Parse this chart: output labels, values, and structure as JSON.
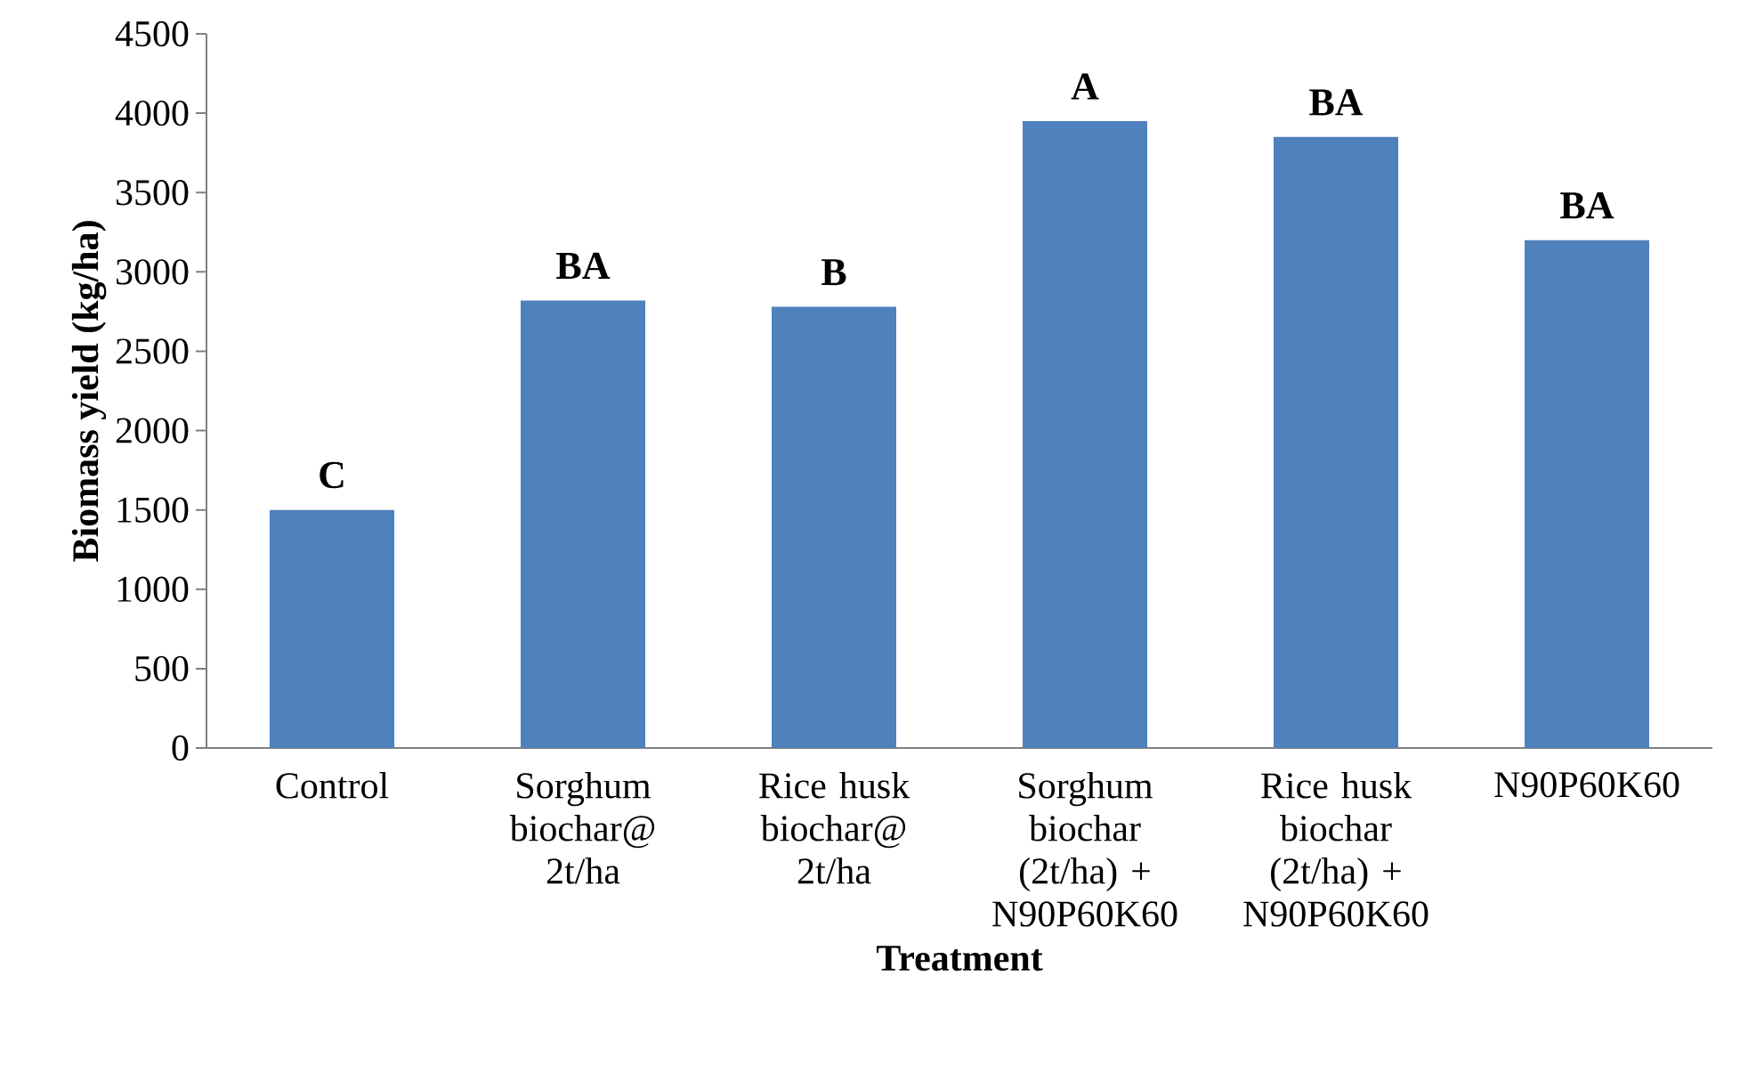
{
  "chart_data": {
    "type": "bar",
    "categories": [
      "Control",
      "Sorghum biochar@ 2t/ha",
      "Rice husk biochar@ 2t/ha",
      "Sorghum biochar (2t/ha) + N90P60K60",
      "Rice husk biochar (2t/ha) + N90P60K60",
      "N90P60K60"
    ],
    "values": [
      1500,
      2820,
      2780,
      3950,
      3850,
      3200
    ],
    "color": "#4f81bd",
    "xlabel": "Treatment",
    "ylabel": "Biomass yield (kg/ha)",
    "ylim": [
      0,
      4500
    ],
    "yticks": [
      0,
      500,
      1000,
      1500,
      2000,
      2500,
      3000,
      3500,
      4000,
      4500
    ],
    "grid": false,
    "annotations": [
      {
        "text": "C",
        "x": "Control",
        "y": 1500
      },
      {
        "text": "BA",
        "x": "Sorghum biochar@ 2t/ha",
        "y": 2820
      },
      {
        "text": "B",
        "x": "Rice husk biochar@ 2t/ha",
        "y": 2780
      },
      {
        "text": "A",
        "x": "Sorghum biochar (2t/ha) + N90P60K60",
        "y": 3950
      },
      {
        "text": "BA",
        "x": "Rice husk biochar (2t/ha) + N90P60K60",
        "y": 3850
      },
      {
        "text": "BA",
        "x": "N90P60K60",
        "y": 3200
      }
    ]
  }
}
